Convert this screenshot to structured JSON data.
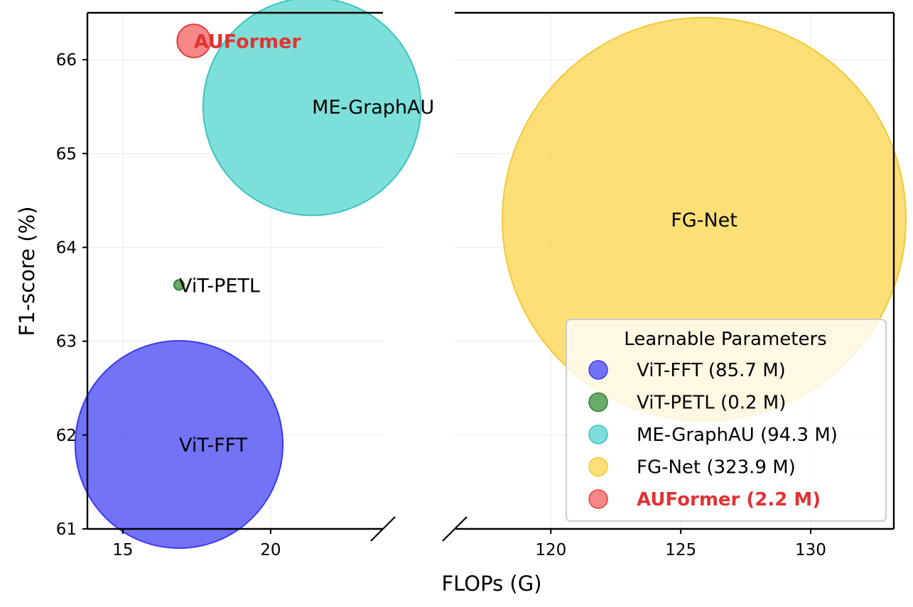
{
  "chart_data": {
    "type": "scatter",
    "subtype": "bubble",
    "xlabel": "FLOPs (G)",
    "ylabel": "F1-score (%)",
    "broken_x_axis": true,
    "x_segments": [
      {
        "xlim": [
          13.8,
          23.8
        ],
        "ticks": [
          15,
          20
        ]
      },
      {
        "xlim": [
          116.3,
          133.2
        ],
        "ticks": [
          120,
          125,
          130
        ]
      }
    ],
    "ylim": [
      61,
      66.5
    ],
    "yticks": [
      61,
      62,
      63,
      64,
      65,
      66
    ],
    "grid": true,
    "legend": {
      "title": "Learnable Parameters",
      "position": "lower-right"
    },
    "series": [
      {
        "name": "ViT-FFT",
        "x": 16.9,
        "y": 61.9,
        "params_M": 85.7,
        "legend_label": "ViT-FFT (85.7 M)",
        "color": "#5b5bf7",
        "edge": "#3a3af0",
        "highlight": false
      },
      {
        "name": "ViT-PETL",
        "x": 16.9,
        "y": 63.6,
        "params_M": 0.2,
        "legend_label": "ViT-PETL (0.2 M)",
        "color": "#4f9e4f",
        "edge": "#2f7f2f",
        "highlight": false
      },
      {
        "name": "ME-GraphAU",
        "x": 21.4,
        "y": 65.5,
        "params_M": 94.3,
        "legend_label": "ME-GraphAU (94.3 M)",
        "color": "#66d9d2",
        "edge": "#3cc4bc",
        "highlight": false
      },
      {
        "name": "FG-Net",
        "x": 125.9,
        "y": 64.3,
        "params_M": 323.9,
        "legend_label": "FG-Net (323.9 M)",
        "color": "#fcd95f",
        "edge": "#f2c835",
        "highlight": false
      },
      {
        "name": "AUFormer",
        "x": 17.4,
        "y": 66.2,
        "params_M": 2.2,
        "legend_label": "AUFormer (2.2 M)",
        "color": "#f77272",
        "edge": "#e23d3d",
        "highlight": true
      }
    ],
    "highlight_color": "#e03333"
  }
}
